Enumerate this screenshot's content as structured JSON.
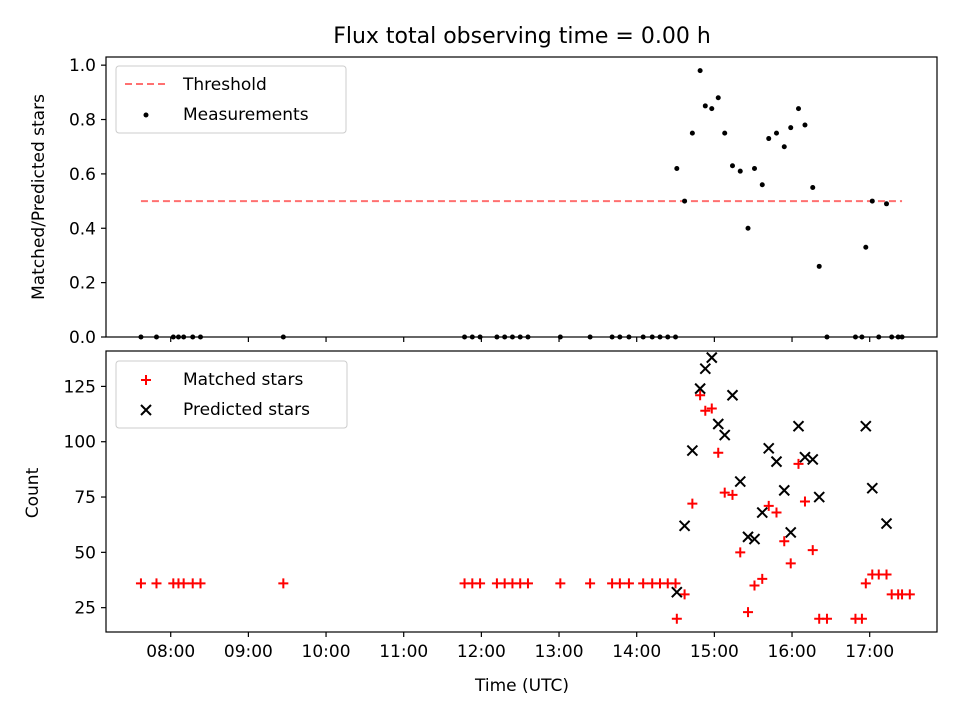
{
  "chart_data": [
    {
      "type": "line+scatter",
      "title": "Flux total observing time = 0.00 h",
      "xlabel": "",
      "ylabel": "Matched/Predicted stars",
      "ylim": [
        0,
        1.03
      ],
      "yticks": [
        "0.0",
        "0.2",
        "0.4",
        "0.6",
        "0.8",
        "1.0"
      ],
      "legend_position": "top-left",
      "series": [
        {
          "name": "Threshold",
          "kind": "dashed-line",
          "color": "#ff7070",
          "points": [
            [
              "07:37",
              0.5
            ],
            [
              "17:25",
              0.5
            ]
          ]
        },
        {
          "name": "Measurements",
          "kind": "scatter-dot",
          "color": "#000000",
          "points": [
            [
              "07:37",
              0.0
            ],
            [
              "07:49",
              0.0
            ],
            [
              "08:02",
              0.0
            ],
            [
              "08:06",
              0.0
            ],
            [
              "08:10",
              0.0
            ],
            [
              "08:17",
              0.0
            ],
            [
              "08:23",
              0.0
            ],
            [
              "09:27",
              0.0
            ],
            [
              "11:47",
              0.0
            ],
            [
              "11:53",
              0.0
            ],
            [
              "11:59",
              0.0
            ],
            [
              "12:12",
              0.0
            ],
            [
              "12:18",
              0.0
            ],
            [
              "12:24",
              0.0
            ],
            [
              "12:30",
              0.0
            ],
            [
              "12:36",
              0.0
            ],
            [
              "13:01",
              0.0
            ],
            [
              "13:24",
              0.0
            ],
            [
              "13:41",
              0.0
            ],
            [
              "13:47",
              0.0
            ],
            [
              "13:54",
              0.0
            ],
            [
              "14:05",
              0.0
            ],
            [
              "14:12",
              0.0
            ],
            [
              "14:18",
              0.0
            ],
            [
              "14:24",
              0.0
            ],
            [
              "14:30",
              0.0
            ],
            [
              "14:31",
              0.62
            ],
            [
              "14:37",
              0.5
            ],
            [
              "14:43",
              0.75
            ],
            [
              "14:49",
              0.98
            ],
            [
              "14:53",
              0.85
            ],
            [
              "14:58",
              0.84
            ],
            [
              "15:03",
              0.88
            ],
            [
              "15:08",
              0.75
            ],
            [
              "15:14",
              0.63
            ],
            [
              "15:20",
              0.61
            ],
            [
              "15:26",
              0.4
            ],
            [
              "15:31",
              0.62
            ],
            [
              "15:37",
              0.56
            ],
            [
              "15:42",
              0.73
            ],
            [
              "15:48",
              0.75
            ],
            [
              "15:54",
              0.7
            ],
            [
              "15:59",
              0.77
            ],
            [
              "16:05",
              0.84
            ],
            [
              "16:10",
              0.78
            ],
            [
              "16:16",
              0.55
            ],
            [
              "16:21",
              0.26
            ],
            [
              "16:27",
              0.0
            ],
            [
              "16:49",
              0.0
            ],
            [
              "16:54",
              0.0
            ],
            [
              "16:57",
              0.33
            ],
            [
              "17:02",
              0.5
            ],
            [
              "17:07",
              0.0
            ],
            [
              "17:13",
              0.49
            ],
            [
              "17:17",
              0.0
            ],
            [
              "17:22",
              0.0
            ],
            [
              "17:25",
              0.0
            ]
          ]
        }
      ]
    },
    {
      "type": "scatter",
      "title": "",
      "xlabel": "Time (UTC)",
      "ylabel": "Count",
      "xlim": [
        "07:10",
        "17:52"
      ],
      "ylim": [
        14,
        141
      ],
      "xticks": [
        "08:00",
        "09:00",
        "10:00",
        "11:00",
        "12:00",
        "13:00",
        "14:00",
        "15:00",
        "16:00",
        "17:00"
      ],
      "yticks": [
        "25",
        "50",
        "75",
        "100",
        "125"
      ],
      "legend_position": "top-left",
      "series": [
        {
          "name": "Matched stars",
          "marker": "plus",
          "color": "#ff0000",
          "points": [
            [
              "07:37",
              36
            ],
            [
              "07:49",
              36
            ],
            [
              "08:02",
              36
            ],
            [
              "08:06",
              36
            ],
            [
              "08:10",
              36
            ],
            [
              "08:17",
              36
            ],
            [
              "08:23",
              36
            ],
            [
              "09:27",
              36
            ],
            [
              "11:47",
              36
            ],
            [
              "11:53",
              36
            ],
            [
              "11:59",
              36
            ],
            [
              "12:12",
              36
            ],
            [
              "12:18",
              36
            ],
            [
              "12:24",
              36
            ],
            [
              "12:30",
              36
            ],
            [
              "12:36",
              36
            ],
            [
              "13:01",
              36
            ],
            [
              "13:24",
              36
            ],
            [
              "13:41",
              36
            ],
            [
              "13:47",
              36
            ],
            [
              "13:54",
              36
            ],
            [
              "14:05",
              36
            ],
            [
              "14:12",
              36
            ],
            [
              "14:18",
              36
            ],
            [
              "14:24",
              36
            ],
            [
              "14:30",
              36
            ],
            [
              "14:31",
              20
            ],
            [
              "14:37",
              31
            ],
            [
              "14:43",
              72
            ],
            [
              "14:49",
              121
            ],
            [
              "14:53",
              114
            ],
            [
              "14:58",
              115
            ],
            [
              "15:03",
              95
            ],
            [
              "15:08",
              77
            ],
            [
              "15:14",
              76
            ],
            [
              "15:20",
              50
            ],
            [
              "15:26",
              23
            ],
            [
              "15:31",
              35
            ],
            [
              "15:37",
              38
            ],
            [
              "15:42",
              71
            ],
            [
              "15:48",
              68
            ],
            [
              "15:54",
              55
            ],
            [
              "15:59",
              45
            ],
            [
              "16:05",
              90
            ],
            [
              "16:10",
              73
            ],
            [
              "16:16",
              51
            ],
            [
              "16:21",
              20
            ],
            [
              "16:27",
              20
            ],
            [
              "16:49",
              20
            ],
            [
              "16:54",
              20
            ],
            [
              "16:57",
              36
            ],
            [
              "17:02",
              40
            ],
            [
              "17:07",
              40
            ],
            [
              "17:13",
              40
            ],
            [
              "17:17",
              31
            ],
            [
              "17:22",
              31
            ],
            [
              "17:25",
              31
            ],
            [
              "17:31",
              31
            ]
          ]
        },
        {
          "name": "Predicted stars",
          "marker": "x",
          "color": "#000000",
          "points": [
            [
              "14:31",
              32
            ],
            [
              "14:37",
              62
            ],
            [
              "14:43",
              96
            ],
            [
              "14:49",
              124
            ],
            [
              "14:53",
              133
            ],
            [
              "14:58",
              138
            ],
            [
              "15:03",
              108
            ],
            [
              "15:08",
              103
            ],
            [
              "15:14",
              121
            ],
            [
              "15:20",
              82
            ],
            [
              "15:26",
              57
            ],
            [
              "15:31",
              56
            ],
            [
              "15:37",
              68
            ],
            [
              "15:42",
              97
            ],
            [
              "15:48",
              91
            ],
            [
              "15:54",
              78
            ],
            [
              "15:59",
              59
            ],
            [
              "16:05",
              107
            ],
            [
              "16:10",
              93
            ],
            [
              "16:16",
              92
            ],
            [
              "16:21",
              75
            ],
            [
              "16:57",
              107
            ],
            [
              "17:02",
              79
            ],
            [
              "17:13",
              63
            ]
          ]
        }
      ]
    }
  ]
}
